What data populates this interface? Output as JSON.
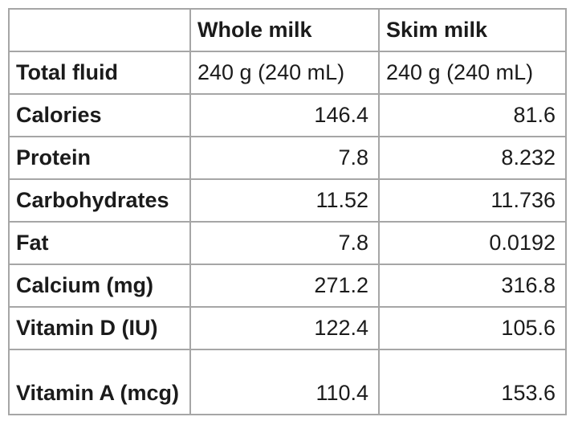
{
  "table": {
    "colors": {
      "border": "#a6a6a6",
      "text": "#1b1b1b",
      "background": "#ffffff"
    },
    "columns": [
      "",
      "Whole milk",
      "Skim milk"
    ],
    "rows": [
      {
        "label": "Total fluid",
        "whole": "240 g (240 mL)",
        "skim": "240 g (240 mL)"
      },
      {
        "label": "Calories",
        "whole": "146.4",
        "skim": "81.6"
      },
      {
        "label": "Protein",
        "whole": "7.8",
        "skim": "8.232"
      },
      {
        "label": "Carbohydrates",
        "whole": "11.52",
        "skim": "11.736"
      },
      {
        "label": "Fat",
        "whole": "7.8",
        "skim": "0.0192"
      },
      {
        "label": "Calcium (mg)",
        "whole": "271.2",
        "skim": "316.8"
      },
      {
        "label": "Vitamin D (IU)",
        "whole": "122.4",
        "skim": "105.6"
      },
      {
        "label": "Vitamin A (mcg)",
        "whole": "110.4",
        "skim": "153.6"
      }
    ]
  }
}
